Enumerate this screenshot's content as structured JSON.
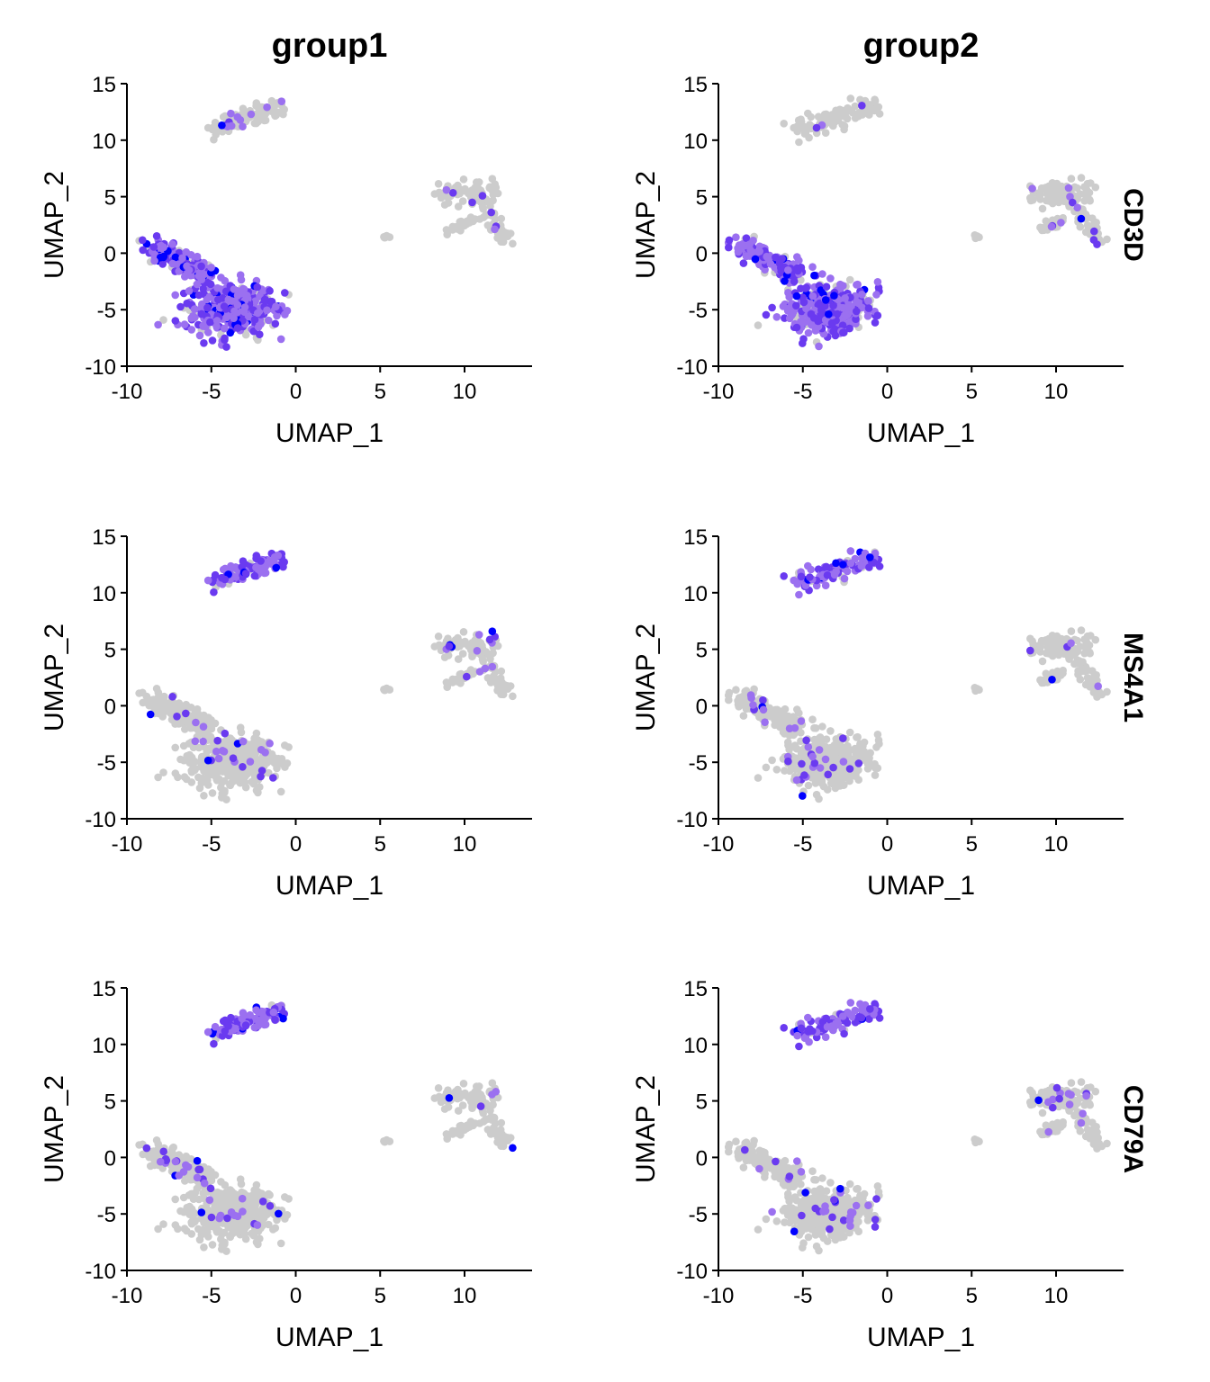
{
  "chart_data": {
    "type": "scatter",
    "kind": "UMAP feature plot, faceted by gene (rows) and group (columns)",
    "columns": [
      "group1",
      "group2"
    ],
    "rows": [
      "CD3D",
      "MS4A1",
      "CD79A"
    ],
    "xlabel": "UMAP_1",
    "ylabel": "UMAP_2",
    "xlim": [
      -10,
      14
    ],
    "ylim": [
      -10,
      15
    ],
    "xticks": [
      -10,
      -5,
      0,
      5,
      10
    ],
    "xtick_labels": [
      "-10",
      "-5",
      "0",
      "5",
      "10"
    ],
    "yticks": [
      -10,
      -5,
      0,
      5,
      10,
      15
    ],
    "ytick_labels": [
      "-10",
      "-5",
      "0",
      "5",
      "10",
      "15"
    ],
    "grid": false,
    "legend": "none",
    "colors": {
      "low": "#cccccc",
      "mid": "#9b70f0",
      "high": "#6a3af0",
      "max": "#0000ff"
    },
    "clusters": [
      {
        "name": "top",
        "cx": -3.1,
        "cy": 12.0,
        "rx": 2.0,
        "ry": 0.9,
        "n": 110
      },
      {
        "name": "right",
        "cx": 10.5,
        "cy": 4.0,
        "rx": 2.2,
        "ry": 2.2,
        "n": 150
      },
      {
        "name": "small",
        "cx": 5.3,
        "cy": 1.45,
        "rx": 0.25,
        "ry": 0.2,
        "n": 6
      },
      {
        "name": "bottom-left",
        "cx": -4.0,
        "cy": -4.2,
        "rx": 3.0,
        "ry": 2.5,
        "n": 520
      }
    ],
    "expression": [
      [
        {
          "top": 0.05,
          "right": 0.05,
          "small": 0.0,
          "bottom-left": 0.8
        },
        {
          "top": 0.05,
          "right": 0.05,
          "small": 0.0,
          "bottom-left": 0.75
        }
      ],
      [
        {
          "top": 0.9,
          "right": 0.06,
          "small": 0.0,
          "bottom-left": 0.04
        },
        {
          "top": 0.92,
          "right": 0.05,
          "small": 0.0,
          "bottom-left": 0.05
        }
      ],
      [
        {
          "top": 0.92,
          "right": 0.05,
          "small": 0.0,
          "bottom-left": 0.06
        },
        {
          "top": 0.9,
          "right": 0.05,
          "small": 0.0,
          "bottom-left": 0.05
        }
      ]
    ]
  }
}
